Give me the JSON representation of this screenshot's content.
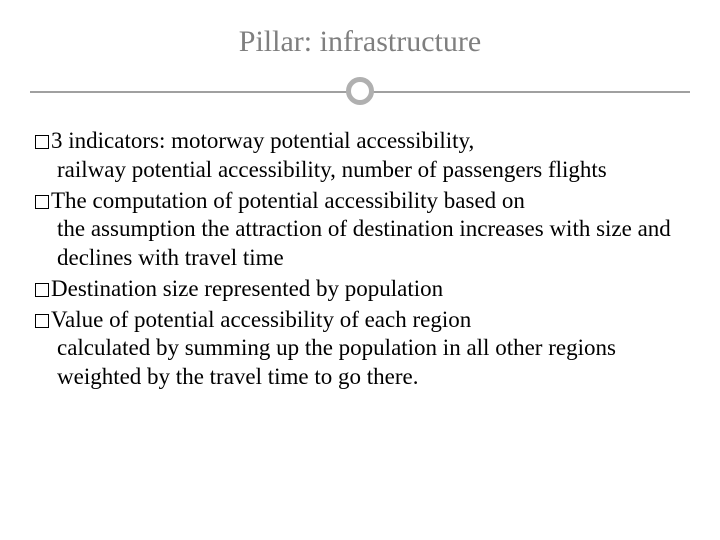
{
  "slide": {
    "title": "Pillar: infrastructure",
    "title_color": "#7f7f7f",
    "title_fontsize": 30,
    "body_fontsize": 23,
    "body_color": "#000000",
    "divider_color": "#a0a0a0",
    "circle_border": "#b0b0b0",
    "bullets": [
      {
        "lead": "3 indicators: motorway potential accessibility,",
        "cont": "railway potential accessibility, number of passengers flights"
      },
      {
        "lead": "The computation of potential accessibility based on",
        "cont": "the assumption the  attraction of destination increases with size and declines with travel time"
      },
      {
        "lead": "Destination size represented by population",
        "cont": ""
      },
      {
        "lead": "Value of potential accessibility of each region",
        "cont": "calculated by summing up the population in all other regions weighted by the travel time to go there."
      }
    ]
  }
}
